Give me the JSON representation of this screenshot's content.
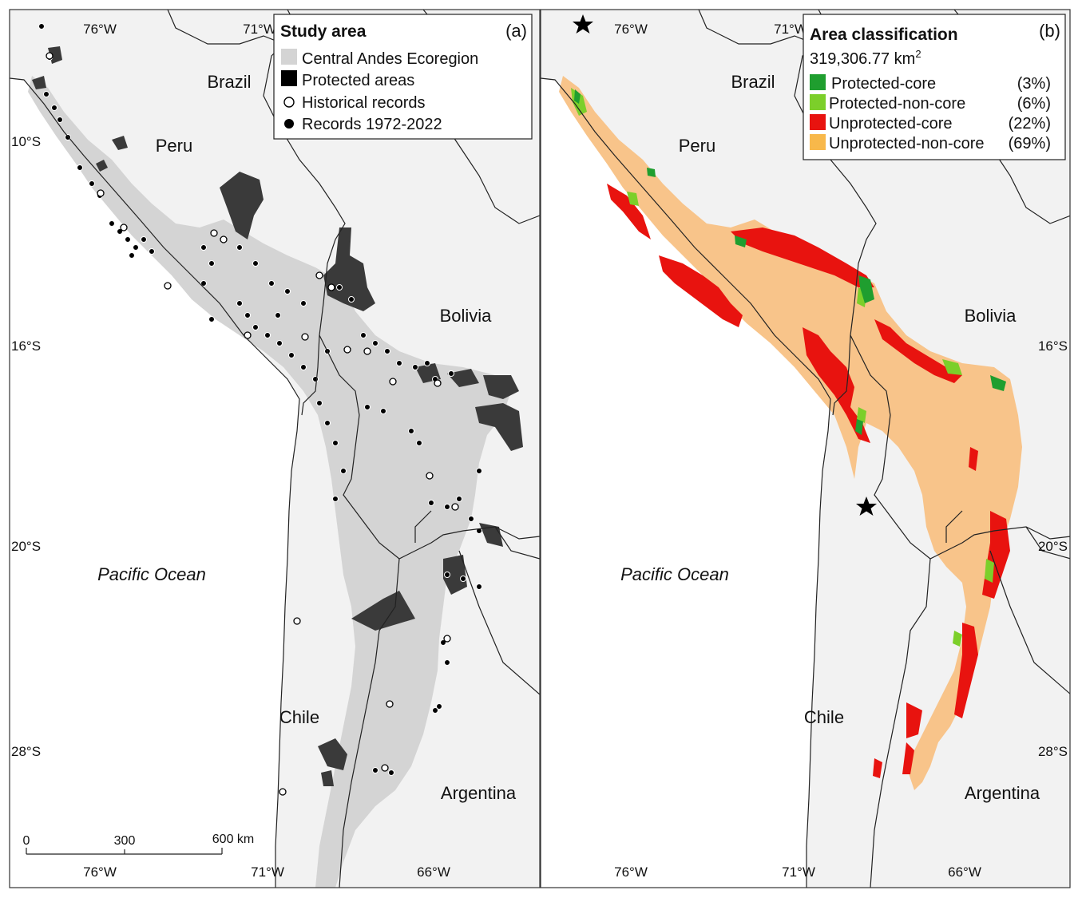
{
  "panels": {
    "a": {
      "tag": "(a)",
      "legend": {
        "title": "Study area",
        "items": [
          {
            "label": "Central Andes Ecoregion",
            "color": "#d4d4d4",
            "symbol": "square"
          },
          {
            "label": "Protected areas",
            "color": "#000000",
            "symbol": "square"
          },
          {
            "label": "Historical records",
            "color": "#ffffff",
            "symbol": "open-circle"
          },
          {
            "label": "Records 1972-2022",
            "color": "#000000",
            "symbol": "filled-circle"
          }
        ]
      },
      "scale_bar": {
        "ticks": [
          "0",
          "300",
          "600 km"
        ]
      }
    },
    "b": {
      "tag": "(b)",
      "legend": {
        "title": "Area classification",
        "total_area_number": "319,306.77 km",
        "total_area_sup": "2",
        "items": [
          {
            "label": "Protected-core",
            "percent": "(3%)",
            "color": "#1f9e2f"
          },
          {
            "label": "Protected-non-core",
            "percent": "(6%)",
            "color": "#7ccf2a"
          },
          {
            "label": "Unprotected-core",
            "percent": "(22%)",
            "color": "#e8130f"
          },
          {
            "label": "Unprotected-non-core",
            "percent": "(69%)",
            "color": "#f8b84a"
          }
        ]
      }
    }
  },
  "labels": {
    "countries": {
      "brazil": "Brazil",
      "peru": "Peru",
      "bolivia": "Bolivia",
      "chile": "Chile",
      "argentina": "Argentina"
    },
    "ocean": "Pacific Ocean",
    "lon_top": [
      "76°W",
      "71°W"
    ],
    "lon_bottom": [
      "76°W",
      "71°W",
      "66°W"
    ],
    "lat_left": [
      "10°S",
      "16°S",
      "20°S",
      "28°S"
    ],
    "lat_right": [
      "16°S",
      "20°S",
      "28°S"
    ]
  },
  "colors": {
    "land": "#f2f2f2",
    "ecoregion": "#d4d4d4",
    "protected": "#3a3a3a",
    "border": "#222222"
  }
}
